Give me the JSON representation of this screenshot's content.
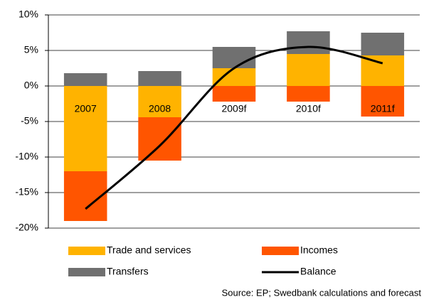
{
  "chart_data": {
    "type": "bar",
    "categories": [
      "2007",
      "2008",
      "2009f",
      "2010f",
      "2011f"
    ],
    "series": [
      {
        "name": "Trade and services",
        "color": "#ffb300",
        "values": [
          -12,
          -4.4,
          2.5,
          4.5,
          4.3
        ]
      },
      {
        "name": "Incomes",
        "color": "#ff5500",
        "values": [
          -7,
          -6.1,
          -2.2,
          -2.2,
          -4.3
        ]
      },
      {
        "name": "Transfers",
        "color": "#707070",
        "values": [
          1.8,
          2.1,
          3.0,
          3.2,
          3.2
        ]
      },
      {
        "name": "Balance",
        "type": "line",
        "color": "#000000",
        "values": [
          -17.3,
          -8.4,
          2.5,
          5.5,
          3.2
        ]
      }
    ],
    "ylim": [
      -20,
      10
    ],
    "yticks": [
      {
        "value": -20,
        "label": "-20%"
      },
      {
        "value": -15,
        "label": "-15%"
      },
      {
        "value": -10,
        "label": "-10%"
      },
      {
        "value": -5,
        "label": "-5%"
      },
      {
        "value": 0,
        "label": "0%"
      },
      {
        "value": 5,
        "label": "5%"
      },
      {
        "value": 10,
        "label": "10%"
      }
    ],
    "grid": true,
    "legend": "bottom",
    "source": "Source: EP; Swedbank calculations and forecast"
  }
}
